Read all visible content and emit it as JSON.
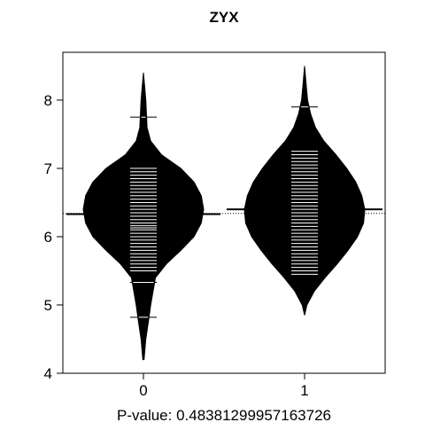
{
  "chart_data": {
    "type": "beanplot",
    "title": "ZYX",
    "xlabel": "P-value: 0.48381299957163726",
    "ylabel": "",
    "ylim": [
      4,
      8.7
    ],
    "yticks": [
      "4",
      "5",
      "6",
      "7",
      "8"
    ],
    "categories": [
      "0",
      "1"
    ],
    "overall_mean": 6.34,
    "colors": {
      "bean": "#000000",
      "lines": "#ffffff",
      "axis": "#000000",
      "background": "#ffffff"
    },
    "series": [
      {
        "category": "0",
        "mean": 6.33,
        "density": [
          [
            4.2,
            0.01
          ],
          [
            4.5,
            0.04
          ],
          [
            4.8,
            0.09
          ],
          [
            5.0,
            0.12
          ],
          [
            5.2,
            0.16
          ],
          [
            5.4,
            0.2
          ],
          [
            5.6,
            0.38
          ],
          [
            5.8,
            0.62
          ],
          [
            6.0,
            0.84
          ],
          [
            6.2,
            0.96
          ],
          [
            6.4,
            1.0
          ],
          [
            6.6,
            0.96
          ],
          [
            6.8,
            0.84
          ],
          [
            7.0,
            0.62
          ],
          [
            7.2,
            0.3
          ],
          [
            7.4,
            0.12
          ],
          [
            7.6,
            0.06
          ],
          [
            7.8,
            0.05
          ],
          [
            8.0,
            0.04
          ],
          [
            8.2,
            0.02
          ],
          [
            8.4,
            0.0
          ]
        ],
        "observations": [
          4.82,
          5.33,
          5.5,
          5.55,
          5.6,
          5.65,
          5.7,
          5.75,
          5.8,
          5.85,
          5.9,
          5.95,
          6.0,
          6.05,
          6.1,
          6.13,
          6.16,
          6.2,
          6.25,
          6.3,
          6.35,
          6.4,
          6.45,
          6.5,
          6.55,
          6.6,
          6.65,
          6.7,
          6.75,
          6.8,
          6.85,
          6.9,
          6.95,
          7.0,
          7.75
        ]
      },
      {
        "category": "1",
        "mean": 6.4,
        "density": [
          [
            4.85,
            0.0
          ],
          [
            5.0,
            0.04
          ],
          [
            5.2,
            0.16
          ],
          [
            5.4,
            0.34
          ],
          [
            5.6,
            0.54
          ],
          [
            5.8,
            0.72
          ],
          [
            6.0,
            0.88
          ],
          [
            6.2,
            0.98
          ],
          [
            6.4,
            1.0
          ],
          [
            6.6,
            0.95
          ],
          [
            6.8,
            0.85
          ],
          [
            7.0,
            0.7
          ],
          [
            7.2,
            0.52
          ],
          [
            7.4,
            0.32
          ],
          [
            7.6,
            0.18
          ],
          [
            7.8,
            0.1
          ],
          [
            8.0,
            0.05
          ],
          [
            8.2,
            0.03
          ],
          [
            8.5,
            0.0
          ]
        ],
        "observations": [
          5.45,
          5.5,
          5.55,
          5.6,
          5.65,
          5.7,
          5.75,
          5.8,
          5.85,
          5.9,
          5.95,
          6.0,
          6.05,
          6.1,
          6.15,
          6.2,
          6.25,
          6.3,
          6.35,
          6.4,
          6.45,
          6.5,
          6.55,
          6.6,
          6.65,
          6.7,
          6.75,
          6.8,
          6.85,
          6.9,
          6.95,
          7.0,
          7.05,
          7.1,
          7.15,
          7.2,
          7.25,
          7.9
        ]
      }
    ]
  }
}
